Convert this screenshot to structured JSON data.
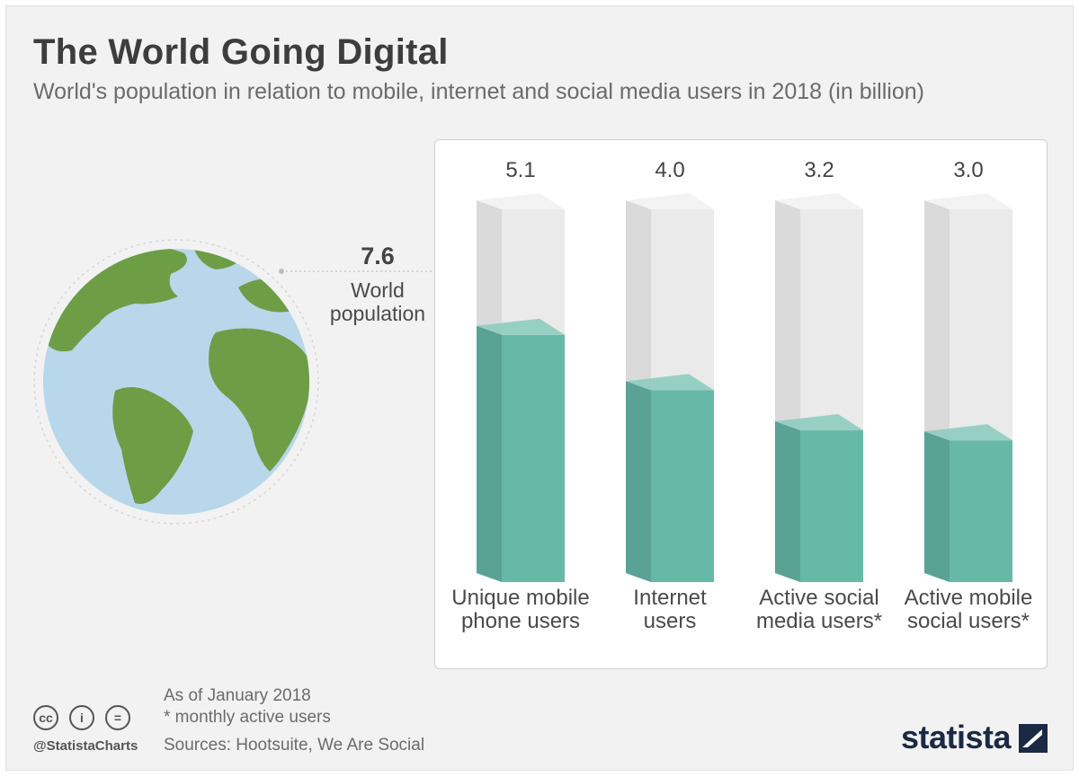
{
  "header": {
    "title": "The World Going Digital",
    "subtitle": "World's population in relation to mobile, internet and social media users in 2018 (in billion)"
  },
  "world": {
    "value": "7.6",
    "label_line1": "World",
    "label_line2": "population"
  },
  "chart_data": {
    "type": "bar",
    "title": "The World Going Digital",
    "subtitle": "World's population in relation to mobile, internet and social media users in 2018 (in billion)",
    "categories": [
      [
        "Unique mobile",
        "phone users"
      ],
      [
        "Internet",
        "users"
      ],
      [
        "Active social",
        "media users*"
      ],
      [
        "Active mobile",
        "social users*"
      ]
    ],
    "values": [
      5.1,
      4.0,
      3.2,
      3.0
    ],
    "value_labels": [
      "5.1",
      "4.0",
      "3.2",
      "3.0"
    ],
    "total": 7.6,
    "ylim": [
      0,
      7.6
    ],
    "grid": false,
    "legend": "none",
    "colors": {
      "fill_front": "#68b8a8",
      "fill_side": "#5aa293",
      "fill_top": "#89cabd",
      "empty_front": "#eaeaea",
      "empty_side": "#dadada",
      "empty_top": "#f3f3f3"
    }
  },
  "notes": {
    "as_of": "As of January 2018",
    "footnote": "* monthly active users",
    "sources": "Sources: Hootsuite, We Are Social"
  },
  "footer": {
    "handle": "@StatistaCharts",
    "brand": "statista",
    "cc_icons": [
      "cc-icon",
      "attribution-icon",
      "noderivs-icon"
    ],
    "cc_glyphs": [
      "cc",
      "i",
      "="
    ]
  },
  "colors": {
    "ocean": "#b8d7ea",
    "land": "#6d9e46",
    "brand": "#1b2a44"
  }
}
